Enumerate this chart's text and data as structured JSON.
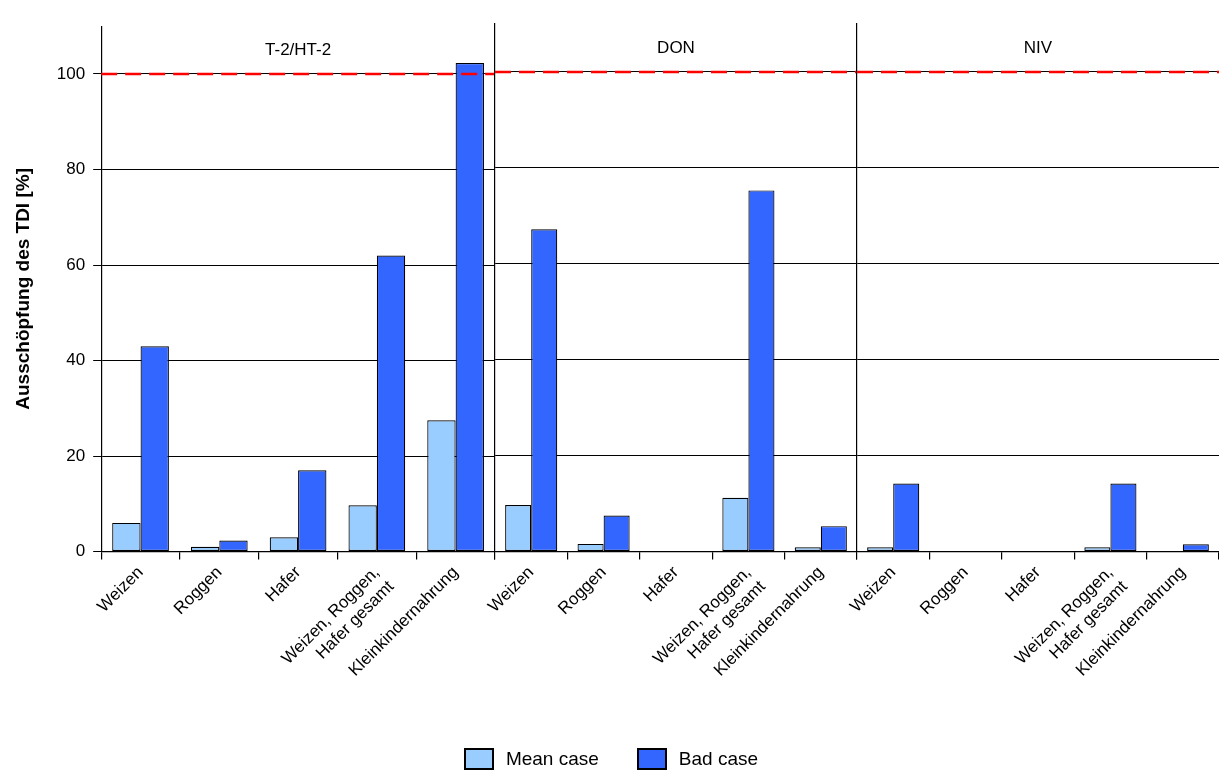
{
  "chart_data": [
    {
      "type": "bar",
      "title": "T-2/HT-2",
      "ylabel": "Ausschöpfung des TDI [%]",
      "categories": [
        "Weizen",
        "Roggen",
        "Hafer",
        "Weizen, Roggen, Hafer gesamt",
        "Kleinkindernahrung"
      ],
      "series": [
        {
          "name": "Mean case",
          "color": "#99ccff",
          "values": [
            6,
            1,
            3,
            9.7,
            27.5
          ]
        },
        {
          "name": "Bad case",
          "color": "#3366ff",
          "values": [
            43,
            2.3,
            17,
            62,
            102.3
          ]
        }
      ],
      "ylim": [
        0,
        110
      ],
      "yticks": [
        0,
        20,
        40,
        60,
        80,
        100
      ],
      "grid": "y",
      "legend": "bottom",
      "ref_lines": [
        {
          "axis": "y",
          "value": 100,
          "color": "#ff0000",
          "line_style": "dashed"
        }
      ]
    },
    {
      "type": "bar",
      "title": "DON",
      "categories": [
        "Weizen",
        "Roggen",
        "Hafer",
        "Weizen, Roggen, Hafer gesamt",
        "Kleinkindernahrung"
      ],
      "series": [
        {
          "color": "#99ccff",
          "values": [
            9.7,
            1.6,
            null,
            11.2,
            0.9
          ]
        },
        {
          "color": "#3366ff",
          "values": [
            67.2,
            7.5,
            null,
            75.3,
            5.3
          ]
        }
      ],
      "ylim": [
        0,
        110
      ],
      "yticks": [
        0,
        20,
        40,
        60,
        80,
        100
      ],
      "grid": "y",
      "tick_labels": "x",
      "ref_lines": [
        {
          "axis": "y",
          "value": 100,
          "color": "#ff0000",
          "line_style": "dashed"
        }
      ]
    },
    {
      "type": "bar",
      "title": "NIV",
      "categories": [
        "Weizen",
        "Roggen",
        "Hafer",
        "Weizen, Roggen, Hafer gesamt",
        "Kleinkindernahrung"
      ],
      "series": [
        {
          "color": "#99ccff",
          "values": [
            0.9,
            null,
            null,
            0.9,
            null
          ]
        },
        {
          "color": "#3366ff",
          "values": [
            14.2,
            null,
            null,
            14.2,
            1.5
          ]
        }
      ],
      "ylim": [
        0,
        110
      ],
      "yticks": [
        0,
        20,
        40,
        60,
        80,
        100
      ],
      "grid": "y",
      "tick_labels": "x",
      "ref_lines": [
        {
          "axis": "y",
          "value": 100,
          "color": "#ff0000",
          "line_style": "dashed"
        }
      ]
    }
  ]
}
